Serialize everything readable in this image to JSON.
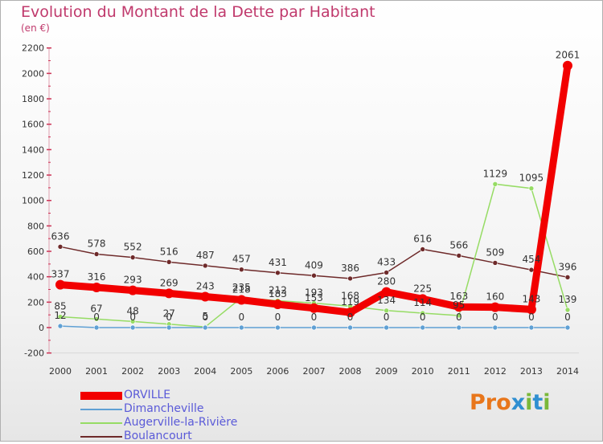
{
  "header": {
    "title": "Evolution du Montant de la Dette par Habitant",
    "subtitle": "(en €)"
  },
  "logo": {
    "text": "Proxiti",
    "colors": [
      "#e8761b",
      "#7ab83a",
      "#2f8fd1"
    ]
  },
  "chart_data": {
    "type": "line",
    "x": [
      "2000",
      "2001",
      "2002",
      "2003",
      "2004",
      "2005",
      "2006",
      "2007",
      "2008",
      "2009",
      "2010",
      "2011",
      "2012",
      "2013",
      "2014"
    ],
    "ylim": [
      -200,
      2200
    ],
    "yticks": [
      -200,
      0,
      200,
      400,
      600,
      800,
      1000,
      1200,
      1400,
      1600,
      1800,
      2000,
      2200
    ],
    "grid": false,
    "legend_position": "bottom-left",
    "series": [
      {
        "name": "ORVILLE",
        "color": "#f20000",
        "values": [
          337,
          316,
          293,
          269,
          243,
          218,
          183,
          153,
          119,
          280,
          225,
          163,
          160,
          143,
          2061
        ],
        "labels": [
          "337",
          "316",
          "293",
          "269",
          "243",
          "218",
          "183",
          "153",
          "119",
          "280",
          "225",
          "163",
          "160",
          "143",
          "2061"
        ]
      },
      {
        "name": "Dimancheville",
        "color": "#5fa0d4",
        "values": [
          12,
          0,
          0,
          0,
          0,
          0,
          0,
          0,
          0,
          0,
          0,
          0,
          0,
          0,
          0
        ],
        "labels": [
          "12",
          "0",
          "0",
          "0",
          "0",
          "0",
          "0",
          "0",
          "0",
          "0",
          "0",
          "0",
          "0",
          "0",
          "0"
        ]
      },
      {
        "name": "Augerville-la-Rivière",
        "color": "#96dc64",
        "values": [
          85,
          67,
          48,
          27,
          5,
          235,
          212,
          193,
          168,
          134,
          114,
          95,
          1129,
          1095,
          139
        ],
        "labels": [
          "85",
          "67",
          "48",
          "27",
          "5",
          "235",
          "212",
          "193",
          "168",
          "134",
          "114",
          "95",
          "1129",
          "1095",
          "139"
        ]
      },
      {
        "name": "Boulancourt",
        "color": "#6e2a2a",
        "values": [
          636,
          578,
          552,
          516,
          487,
          457,
          431,
          409,
          386,
          433,
          616,
          566,
          509,
          454,
          396
        ],
        "labels": [
          "636",
          "578",
          "552",
          "516",
          "487",
          "457",
          "431",
          "409",
          "386",
          "433",
          "616",
          "566",
          "509",
          "454",
          "396"
        ]
      }
    ]
  }
}
